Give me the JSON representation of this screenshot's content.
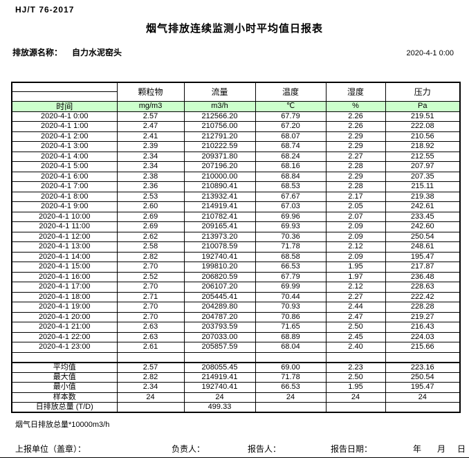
{
  "page": {
    "standard": "HJ/T  76-2017",
    "title": "烟气排放连续监测小时平均值日报表",
    "source_label": "排放源名称：",
    "source_name": "自力水泥窑头",
    "datetime": "2020-4-1  0:00"
  },
  "colors": {
    "header_green": "#ccffcc"
  },
  "table": {
    "time_header": "时间",
    "columns": [
      {
        "name": "颗粒物",
        "unit": "mg/m3"
      },
      {
        "name": "流量",
        "unit": "m3/h"
      },
      {
        "name": "温度",
        "unit": "℃"
      },
      {
        "name": "湿度",
        "unit": "%"
      },
      {
        "name": "压力",
        "unit": "Pa"
      }
    ],
    "rows": [
      {
        "time": "2020-4-1 0:00",
        "values": [
          "2.57",
          "212566.20",
          "67.79",
          "2.26",
          "219.51"
        ]
      },
      {
        "time": "2020-4-1 1:00",
        "values": [
          "2.47",
          "210756.00",
          "67.20",
          "2.26",
          "222.08"
        ]
      },
      {
        "time": "2020-4-1 2:00",
        "values": [
          "2.41",
          "212791.20",
          "68.07",
          "2.29",
          "210.56"
        ]
      },
      {
        "time": "2020-4-1 3:00",
        "values": [
          "2.39",
          "210222.59",
          "68.74",
          "2.29",
          "218.92"
        ]
      },
      {
        "time": "2020-4-1 4:00",
        "values": [
          "2.34",
          "209371.80",
          "68.24",
          "2.27",
          "212.55"
        ]
      },
      {
        "time": "2020-4-1 5:00",
        "values": [
          "2.34",
          "207196.20",
          "68.16",
          "2.28",
          "207.97"
        ]
      },
      {
        "time": "2020-4-1 6:00",
        "values": [
          "2.38",
          "210000.00",
          "68.84",
          "2.29",
          "207.35"
        ]
      },
      {
        "time": "2020-4-1 7:00",
        "values": [
          "2.36",
          "210890.41",
          "68.53",
          "2.28",
          "215.11"
        ]
      },
      {
        "time": "2020-4-1 8:00",
        "values": [
          "2.53",
          "213932.41",
          "67.67",
          "2.17",
          "219.38"
        ]
      },
      {
        "time": "2020-4-1 9:00",
        "values": [
          "2.60",
          "214919.41",
          "67.03",
          "2.05",
          "242.61"
        ]
      },
      {
        "time": "2020-4-1 10:00",
        "values": [
          "2.69",
          "210782.41",
          "69.96",
          "2.07",
          "233.45"
        ]
      },
      {
        "time": "2020-4-1 11:00",
        "values": [
          "2.69",
          "209165.41",
          "69.93",
          "2.09",
          "242.60"
        ]
      },
      {
        "time": "2020-4-1 12:00",
        "values": [
          "2.62",
          "213973.20",
          "70.36",
          "2.09",
          "250.54"
        ]
      },
      {
        "time": "2020-4-1 13:00",
        "values": [
          "2.58",
          "210078.59",
          "71.78",
          "2.12",
          "248.61"
        ]
      },
      {
        "time": "2020-4-1 14:00",
        "values": [
          "2.82",
          "192740.41",
          "68.58",
          "2.09",
          "195.47"
        ]
      },
      {
        "time": "2020-4-1 15:00",
        "values": [
          "2.70",
          "199810.20",
          "66.53",
          "1.95",
          "217.87"
        ]
      },
      {
        "time": "2020-4-1 16:00",
        "values": [
          "2.52",
          "206820.59",
          "67.79",
          "1.97",
          "236.48"
        ]
      },
      {
        "time": "2020-4-1 17:00",
        "values": [
          "2.70",
          "206107.20",
          "69.99",
          "2.12",
          "228.63"
        ]
      },
      {
        "time": "2020-4-1 18:00",
        "values": [
          "2.71",
          "205445.41",
          "70.44",
          "2.27",
          "222.42"
        ]
      },
      {
        "time": "2020-4-1 19:00",
        "values": [
          "2.70",
          "204289.80",
          "70.93",
          "2.44",
          "228.28"
        ]
      },
      {
        "time": "2020-4-1 20:00",
        "values": [
          "2.70",
          "204787.20",
          "70.86",
          "2.47",
          "219.27"
        ]
      },
      {
        "time": "2020-4-1 21:00",
        "values": [
          "2.63",
          "203793.59",
          "71.65",
          "2.50",
          "216.43"
        ]
      },
      {
        "time": "2020-4-1 22:00",
        "values": [
          "2.63",
          "207033.00",
          "68.89",
          "2.45",
          "224.03"
        ]
      },
      {
        "time": "2020-4-1 23:00",
        "values": [
          "2.61",
          "205857.59",
          "68.04",
          "2.40",
          "215.66"
        ]
      }
    ],
    "summary": [
      {
        "label": "平均值",
        "values": [
          "2.57",
          "208055.45",
          "69.00",
          "2.23",
          "223.16"
        ]
      },
      {
        "label": "最大值",
        "values": [
          "2.82",
          "214919.41",
          "71.78",
          "2.50",
          "250.54"
        ]
      },
      {
        "label": "最小值",
        "values": [
          "2.34",
          "192740.41",
          "66.53",
          "1.95",
          "195.47"
        ]
      },
      {
        "label": "样本数",
        "values": [
          "24",
          "24",
          "24",
          "24",
          "24"
        ]
      },
      {
        "label": "日排放总量 (T/D)",
        "values": [
          "",
          "499.33",
          "",
          "",
          ""
        ]
      }
    ]
  },
  "footer": {
    "note": "烟气日排放总量*10000m3/h",
    "report_unit_label": "上报单位（盖章）：",
    "responsible_label": "负责人：",
    "reporter_label": "报告人：",
    "report_date_label": "报告日期：",
    "year_label": "年",
    "month_label": "月",
    "day_label": "日"
  }
}
